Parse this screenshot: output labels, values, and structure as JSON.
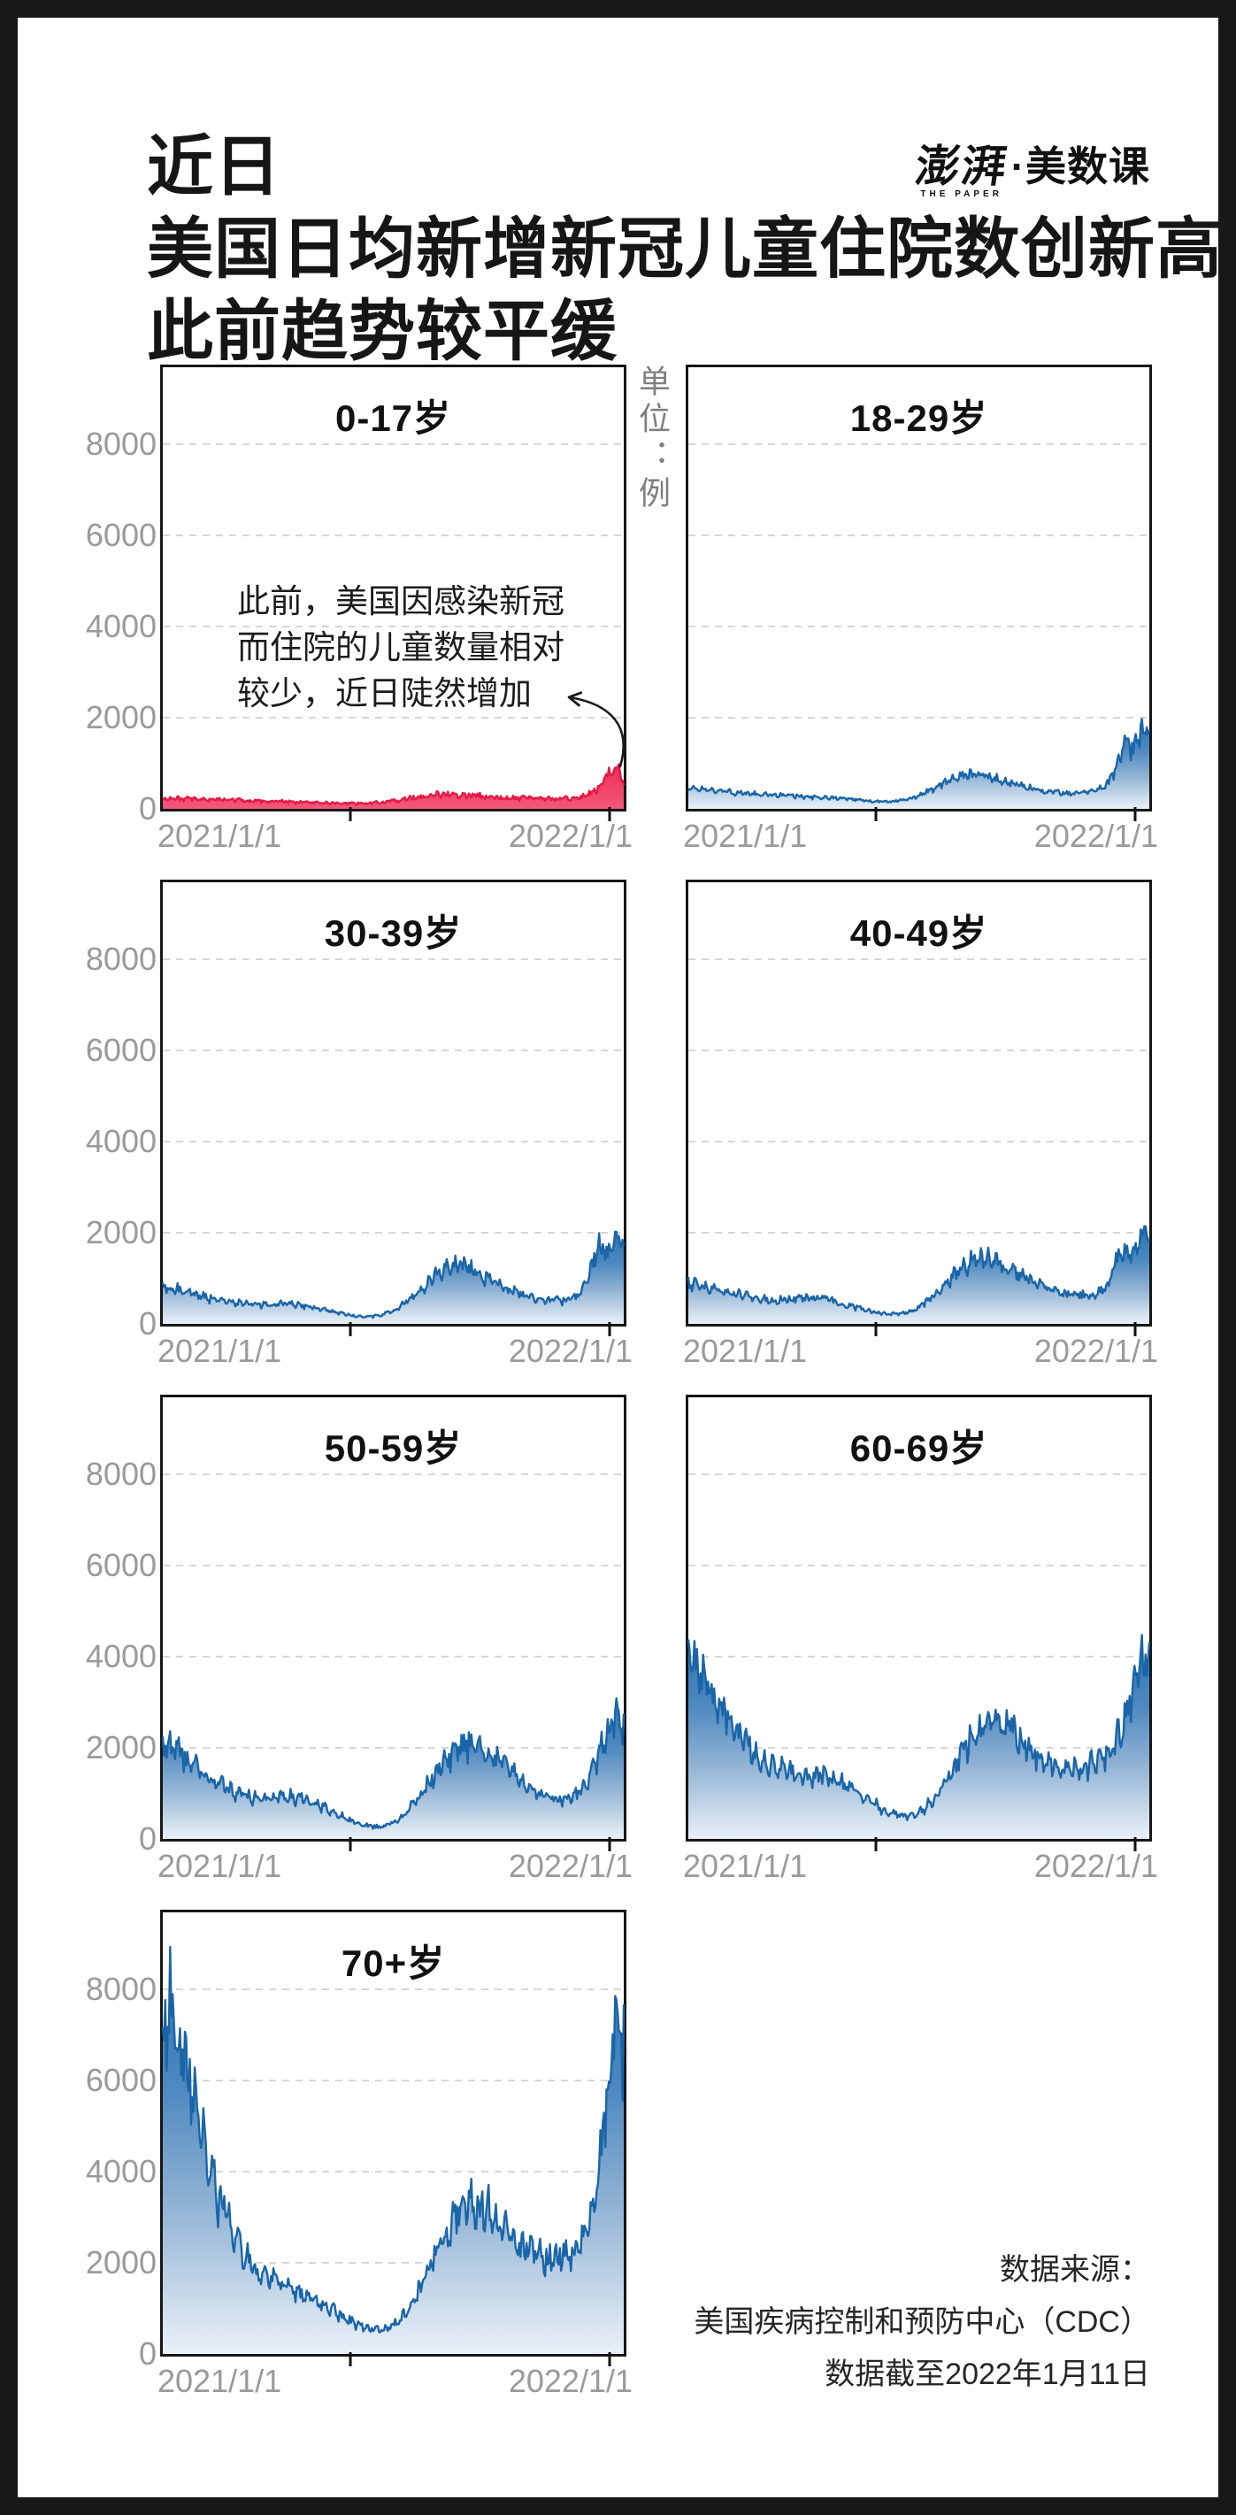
{
  "header": {
    "title_lines": [
      "近日",
      "美国日均新增新冠儿童住院数创新高",
      "此前趋势较平缓"
    ],
    "logo": {
      "brand": "澎湃",
      "brand_sub": "THE PAPER",
      "suffix": "·美数课"
    }
  },
  "unit_label": "单位：例",
  "annotation": {
    "lines": [
      "此前，美国因感染新冠",
      "而住院的儿童数量相对",
      "较少，近日陡然增加"
    ]
  },
  "source": {
    "lines": [
      "数据来源：",
      "美国疾病控制和预防中心（CDC）",
      "数据截至2022年1月11日"
    ]
  },
  "chart_data": {
    "type": "area",
    "unit": "例",
    "x_start_label": "2021/1/1",
    "x_end_label": "2022/1/1",
    "x_range": [
      "2021/1/1",
      "2022/1/11"
    ],
    "sample_interval": "约每周一个取样点，渲染时按日插值",
    "y_ticks": [
      0,
      2000,
      4000,
      6000,
      8000
    ],
    "ylim": [
      0,
      9690
    ],
    "grid": "horizontal dashed",
    "colors": {
      "red_stroke": "#e51a45",
      "red_fill_top": "#ed2d55",
      "red_fill_bottom": "#f2577a",
      "blue_stroke": "#1a65a8",
      "blue_fill_top": "#2a70b2",
      "blue_fill_bottom": "#e9f0f7",
      "axis_text": "#9a9a9a",
      "border": "#161616"
    },
    "charts": [
      {
        "id": "0-17",
        "title": "0-17岁",
        "color": "red",
        "y_axis_labels": true,
        "row": 0,
        "col": 0,
        "values": [
          225,
          232,
          220,
          214,
          208,
          205,
          212,
          200,
          192,
          196,
          186,
          176,
          170,
          166,
          160,
          152,
          146,
          150,
          140,
          136,
          130,
          126,
          120,
          116,
          118,
          126,
          142,
          162,
          188,
          218,
          252,
          282,
          302,
          316,
          320,
          310,
          300,
          290,
          278,
          264,
          254,
          244,
          236,
          230,
          228,
          224,
          222,
          220,
          226,
          240,
          265,
          345,
          490,
          720,
          910,
          640
        ]
      },
      {
        "id": "18-29",
        "title": "18-29岁",
        "color": "blue",
        "y_axis_labels": false,
        "row": 0,
        "col": 1,
        "values": [
          430,
          470,
          425,
          400,
          385,
          370,
          355,
          345,
          335,
          325,
          315,
          305,
          295,
          285,
          275,
          262,
          250,
          242,
          235,
          225,
          212,
          198,
          182,
          168,
          158,
          162,
          178,
          205,
          255,
          325,
          415,
          510,
          600,
          680,
          735,
          750,
          735,
          705,
          660,
          610,
          558,
          508,
          465,
          428,
          398,
          375,
          358,
          348,
          342,
          350,
          380,
          440,
          580,
          950,
          1460,
          1270,
          1780,
          1650
        ]
      },
      {
        "id": "30-39",
        "title": "30-39岁",
        "color": "blue",
        "y_axis_labels": true,
        "row": 1,
        "col": 0,
        "values": [
          850,
          800,
          755,
          700,
          650,
          600,
          560,
          520,
          490,
          465,
          445,
          430,
          425,
          435,
          445,
          455,
          445,
          420,
          390,
          350,
          310,
          268,
          228,
          196,
          168,
          158,
          170,
          200,
          262,
          350,
          470,
          620,
          780,
          950,
          1100,
          1230,
          1300,
          1280,
          1220,
          1130,
          1030,
          930,
          830,
          740,
          660,
          600,
          560,
          530,
          512,
          505,
          522,
          585,
          780,
          1280,
          1760,
          1560,
          1950,
          1850
        ]
      },
      {
        "id": "40-49",
        "title": "40-49岁",
        "color": "blue",
        "y_axis_labels": false,
        "row": 1,
        "col": 1,
        "values": [
          900,
          870,
          820,
          770,
          722,
          680,
          645,
          610,
          580,
          552,
          532,
          520,
          530,
          545,
          560,
          570,
          558,
          538,
          500,
          452,
          400,
          350,
          300,
          260,
          232,
          212,
          222,
          252,
          322,
          432,
          570,
          740,
          920,
          1100,
          1260,
          1380,
          1450,
          1428,
          1368,
          1278,
          1178,
          1078,
          980,
          892,
          812,
          742,
          690,
          652,
          622,
          615,
          635,
          705,
          890,
          1420,
          1620,
          1470,
          2020,
          1950
        ]
      },
      {
        "id": "50-59",
        "title": "50-59岁",
        "color": "blue",
        "y_axis_labels": true,
        "row": 2,
        "col": 0,
        "values": [
          2100,
          2060,
          1900,
          1750,
          1600,
          1450,
          1320,
          1200,
          1100,
          1020,
          950,
          900,
          880,
          890,
          910,
          930,
          918,
          888,
          830,
          750,
          660,
          570,
          480,
          400,
          332,
          282,
          262,
          282,
          352,
          482,
          670,
          900,
          1150,
          1400,
          1640,
          1850,
          2000,
          2080,
          2048,
          1948,
          1810,
          1660,
          1510,
          1370,
          1240,
          1130,
          1000,
          900,
          852,
          872,
          950,
          1100,
          1420,
          1920,
          2420,
          2700,
          2600
        ]
      },
      {
        "id": "60-69",
        "title": "60-69岁",
        "color": "blue",
        "y_axis_labels": false,
        "row": 2,
        "col": 1,
        "values": [
          3800,
          3700,
          3450,
          3150,
          2850,
          2550,
          2300,
          2080,
          1900,
          1750,
          1620,
          1520,
          1450,
          1420,
          1400,
          1390,
          1368,
          1328,
          1258,
          1158,
          1040,
          912,
          790,
          680,
          592,
          532,
          512,
          542,
          640,
          820,
          1080,
          1380,
          1700,
          2020,
          2300,
          2500,
          2600,
          2578,
          2468,
          2298,
          2110,
          1930,
          1780,
          1660,
          1572,
          1520,
          1512,
          1542,
          1622,
          1755,
          1900,
          2105,
          2620,
          3420,
          4000,
          3850
        ]
      },
      {
        "id": "70plus",
        "title": "70+岁",
        "color": "blue",
        "y_axis_labels": true,
        "row": 3,
        "col": 0,
        "values": [
          7900,
          7520,
          6900,
          6200,
          5400,
          4600,
          3900,
          3300,
          2800,
          2400,
          2100,
          1900,
          1750,
          1650,
          1550,
          1480,
          1400,
          1320,
          1220,
          1100,
          980,
          860,
          750,
          660,
          590,
          550,
          540,
          580,
          700,
          900,
          1200,
          1550,
          1950,
          2350,
          2700,
          2980,
          3180,
          3280,
          3250,
          3120,
          2930,
          2720,
          2520,
          2350,
          2220,
          2130,
          2090,
          2100,
          2180,
          2320,
          2550,
          2820,
          3900,
          6100,
          7450,
          7000
        ]
      }
    ]
  }
}
